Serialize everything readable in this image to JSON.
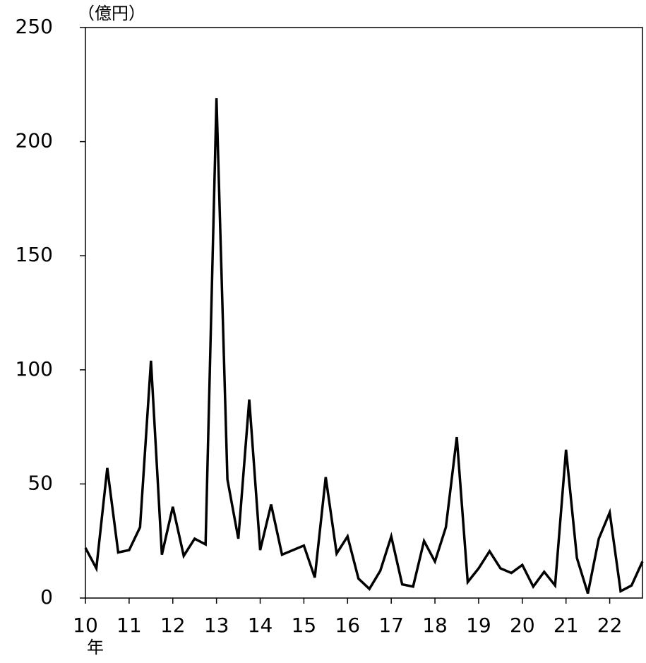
{
  "chart_data": {
    "type": "line",
    "y_label": "（億円）",
    "x_label": "年",
    "x": [
      10,
      10.25,
      10.5,
      10.75,
      11,
      11.25,
      11.5,
      11.75,
      12,
      12.25,
      12.5,
      12.75,
      13,
      13.25,
      13.5,
      13.75,
      14,
      14.25,
      14.5,
      14.75,
      15,
      15.25,
      15.5,
      15.75,
      16,
      16.25,
      16.5,
      16.75,
      17,
      17.25,
      17.5,
      17.75,
      18,
      18.25,
      18.5,
      18.75,
      19,
      19.25,
      19.5,
      19.75,
      20,
      20.25,
      20.5,
      20.75,
      21,
      21.25,
      21.5,
      21.75,
      22,
      22.25,
      22.5,
      22.75
    ],
    "values": [
      22,
      13,
      57,
      20,
      21,
      31,
      104,
      19,
      40,
      18.5,
      26,
      23.5,
      219,
      52,
      26,
      87,
      21,
      41,
      19,
      21,
      23,
      9,
      53,
      19.5,
      27,
      8.5,
      4,
      12,
      27,
      6,
      5,
      25,
      16,
      31,
      70.5,
      7,
      13,
      20.5,
      13,
      11,
      14.5,
      5,
      11.5,
      5.5,
      65,
      17.5,
      2,
      26,
      37.5,
      3,
      5.5,
      16
    ],
    "color": "#000000",
    "xlim": [
      10,
      22.75
    ],
    "xticks": [
      10,
      11,
      12,
      13,
      14,
      15,
      16,
      17,
      18,
      19,
      20,
      21,
      22
    ],
    "ylim": [
      0,
      250
    ],
    "yticks": [
      0,
      50,
      100,
      150,
      200,
      250
    ],
    "grid": false
  }
}
